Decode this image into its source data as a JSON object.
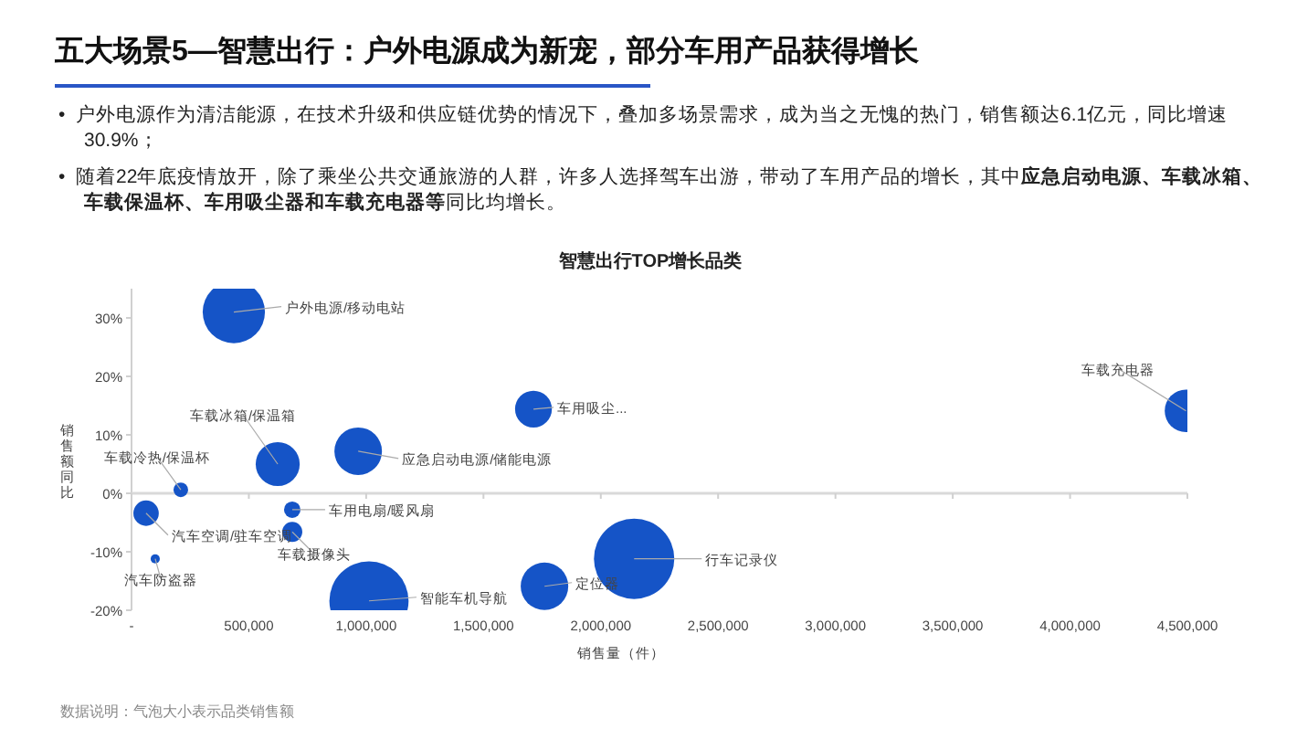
{
  "chart_data": {
    "type": "bubble",
    "title": "五大场景5—智慧出行：户外电源成为新宠，部分车用产品获得增长",
    "subtitle": "智慧出行TOP增长品类",
    "xlabel": "销售量（件）",
    "ylabel": "销售额同比",
    "annotations": [
      "•  户外电源作为清洁能源，在技术升级和供应链优势的情况下，叠加多场景需求，成为当之无愧的热门，销售额达6.1亿元，同比增速30.9%；",
      "•  随着22年底疫情放开，除了乘坐公共交通旅游的人群，许多人选择驾车出游，带动了车用产品的增长，其中",
      "应急启动电源、车载冰箱、车载保温杯、车用吸尘器和车载充电器等",
      "同比均增长。",
      "数据说明：气泡大小表示品类销售额"
    ],
    "xlim": [
      0,
      4500000
    ],
    "xticks": [
      {
        "value": 0,
        "label": "-"
      },
      {
        "value": 500000,
        "label": "500,000"
      },
      {
        "value": 1000000,
        "label": "1,000,000"
      },
      {
        "value": 1500000,
        "label": "1,500,000"
      },
      {
        "value": 2000000,
        "label": "2,000,000"
      },
      {
        "value": 2500000,
        "label": "2,500,000"
      },
      {
        "value": 3000000,
        "label": "3,000,000"
      },
      {
        "value": 3500000,
        "label": "3,500,000"
      },
      {
        "value": 4000000,
        "label": "4,000,000"
      },
      {
        "value": 4500000,
        "label": "4,500,000"
      }
    ],
    "ylim": [
      -20,
      35
    ],
    "yticks": [
      {
        "value": -20,
        "label": "-20%"
      },
      {
        "value": -10,
        "label": "-10%"
      },
      {
        "value": 0,
        "label": "0%"
      },
      {
        "value": 10,
        "label": "10%"
      },
      {
        "value": 20,
        "label": "20%"
      },
      {
        "value": 30,
        "label": "30%"
      }
    ],
    "legend": false,
    "series": [
      {
        "name": "户外电源/移动电站",
        "color": "#1554c7",
        "x": [
          436000
        ],
        "values": [
          31
        ],
        "sizes": [
          0.6
        ]
      },
      {
        "name": "车用吸尘...",
        "color": "#1554c7",
        "x": [
          1713000
        ],
        "values": [
          14.4
        ],
        "sizes": [
          0.21
        ]
      },
      {
        "name": "车载冰箱/保温箱",
        "color": "#1554c7",
        "x": [
          623000
        ],
        "values": [
          5
        ],
        "sizes": [
          0.3
        ]
      },
      {
        "name": "应急启动电源/储能电源",
        "color": "#1554c7",
        "x": [
          966000
        ],
        "values": [
          7.2
        ],
        "sizes": [
          0.35
        ]
      },
      {
        "name": "车载冷热/保温杯",
        "color": "#1554c7",
        "x": [
          210000
        ],
        "values": [
          0.6
        ],
        "sizes": [
          0.033
        ]
      },
      {
        "name": "汽车空调/驻车空调",
        "color": "#1554c7",
        "x": [
          62000
        ],
        "values": [
          -3.4
        ],
        "sizes": [
          0.1
        ]
      },
      {
        "name": "车用电扇/暖风扇",
        "color": "#1554c7",
        "x": [
          685000
        ],
        "values": [
          -2.8
        ],
        "sizes": [
          0.042
        ]
      },
      {
        "name": "车载摄像头",
        "color": "#1554c7",
        "x": [
          685000
        ],
        "values": [
          -6.6
        ],
        "sizes": [
          0.0625
        ]
      },
      {
        "name": "汽车防盗器",
        "color": "#1554c7",
        "x": [
          101000
        ],
        "values": [
          -11.2
        ],
        "sizes": [
          0.013
        ]
      },
      {
        "name": "智能车机导航",
        "color": "#1554c7",
        "x": [
          1012000
        ],
        "values": [
          -18.4
        ],
        "sizes": [
          0.97
        ]
      },
      {
        "name": "定位器",
        "color": "#1554c7",
        "x": [
          1760000
        ],
        "values": [
          -15.9
        ],
        "sizes": [
          0.35
        ]
      },
      {
        "name": "行车记录仪",
        "color": "#1554c7",
        "x": [
          2142000
        ],
        "values": [
          -11.2
        ],
        "sizes": [
          1
        ]
      },
      {
        "name": "车载充电器",
        "color": "#1554c7",
        "x": [
          4494000
        ],
        "values": [
          14.1
        ],
        "sizes": [
          0.28
        ]
      }
    ]
  }
}
